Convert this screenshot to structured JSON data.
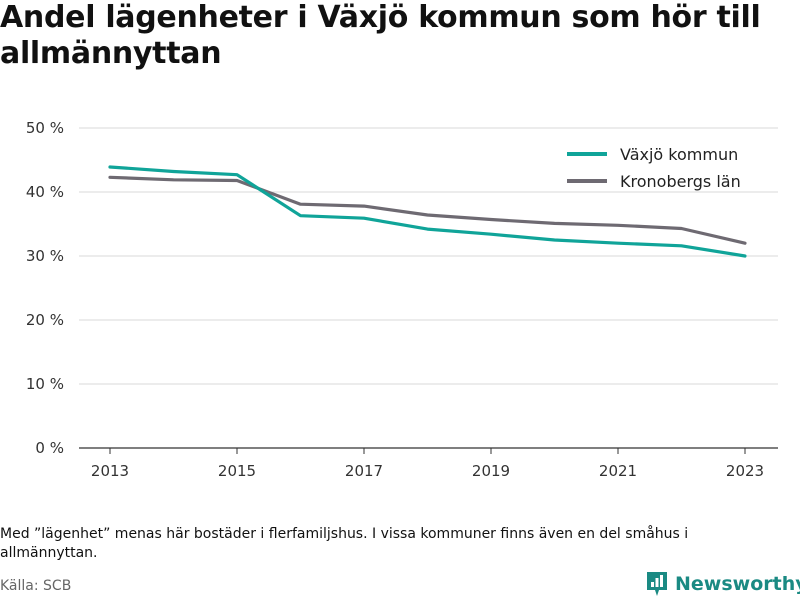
{
  "title": "Andel lägenheter i Växjö kommun som hör till allmännyttan",
  "note": "Med ”lägenhet” menas här bostäder i flerfamiljshus. I vissa kommuner finns även en del småhus i allmännyttan.",
  "source": "Källa: SCB",
  "brand": {
    "name": "Newsworthy",
    "icon": "newsworthy-logo-icon",
    "color": "#1a8a83"
  },
  "chart_data": {
    "type": "line",
    "title": "Andel lägenheter i Växjö kommun som hör till allmännyttan",
    "xlabel": "",
    "ylabel": "",
    "x": [
      2013,
      2014,
      2015,
      2016,
      2017,
      2018,
      2019,
      2020,
      2021,
      2022,
      2023
    ],
    "x_ticks": [
      "2013",
      "2015",
      "2017",
      "2019",
      "2021",
      "2023"
    ],
    "y_ticks": [
      "0 %",
      "10 %",
      "20 %",
      "30 %",
      "40 %",
      "50 %"
    ],
    "ylim": [
      0,
      50
    ],
    "xlim": [
      2013,
      2023
    ],
    "grid": true,
    "legend_position": "top-right",
    "series": [
      {
        "name": "Växjö kommun",
        "color": "#10a499",
        "values": [
          43.9,
          43.2,
          42.7,
          36.3,
          35.9,
          34.2,
          33.4,
          32.5,
          32.0,
          31.6,
          30.0
        ]
      },
      {
        "name": "Kronobergs län",
        "color": "#6e6a72",
        "values": [
          42.3,
          41.9,
          41.8,
          38.1,
          37.8,
          36.4,
          35.7,
          35.1,
          34.8,
          34.3,
          32.0
        ]
      }
    ]
  }
}
